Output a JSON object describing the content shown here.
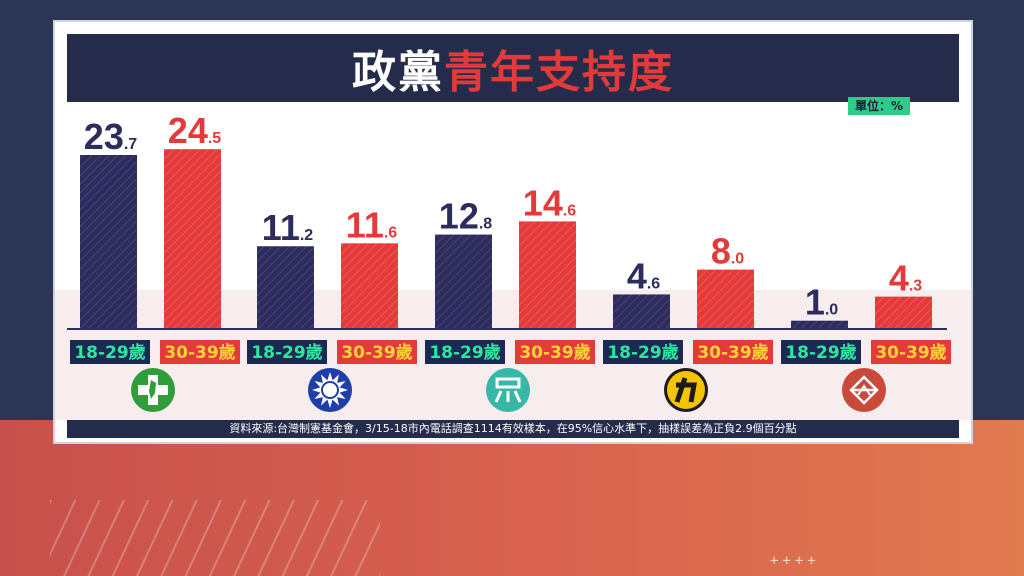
{
  "title": {
    "part1": "政黨",
    "part2": "青年支持度"
  },
  "unit_label": "單位：%",
  "source": "資料來源:台灣制憲基金會，3/15-18市內電話調查1114有效樣本，在95%信心水準下，抽樣誤差為正負2.9個百分點",
  "decoration": "++++",
  "colors": {
    "series_18_29": "#2e2c5c",
    "series_30_39": "#e33a3a",
    "label_18_29_bg": "#1b2a52",
    "label_18_29_text": "#2ee6a0",
    "label_30_39_bg": "#e33a3a",
    "label_30_39_text": "#ffd23a"
  },
  "chart_data": {
    "type": "bar",
    "unit": "%",
    "ylim": [
      0,
      26
    ],
    "categories": [
      "dpp",
      "kmt",
      "tpp",
      "npp",
      "tsp"
    ],
    "party_icons": [
      "dpp-logo-icon",
      "kmt-logo-icon",
      "tpp-logo-icon",
      "npp-logo-icon",
      "tsp-logo-icon"
    ],
    "series": [
      {
        "name": "18-29歲",
        "values": [
          23.7,
          11.2,
          12.8,
          4.6,
          1.0
        ]
      },
      {
        "name": "30-39歲",
        "values": [
          24.5,
          11.6,
          14.6,
          8.0,
          4.3
        ]
      }
    ],
    "grid": false,
    "legend": "none"
  }
}
